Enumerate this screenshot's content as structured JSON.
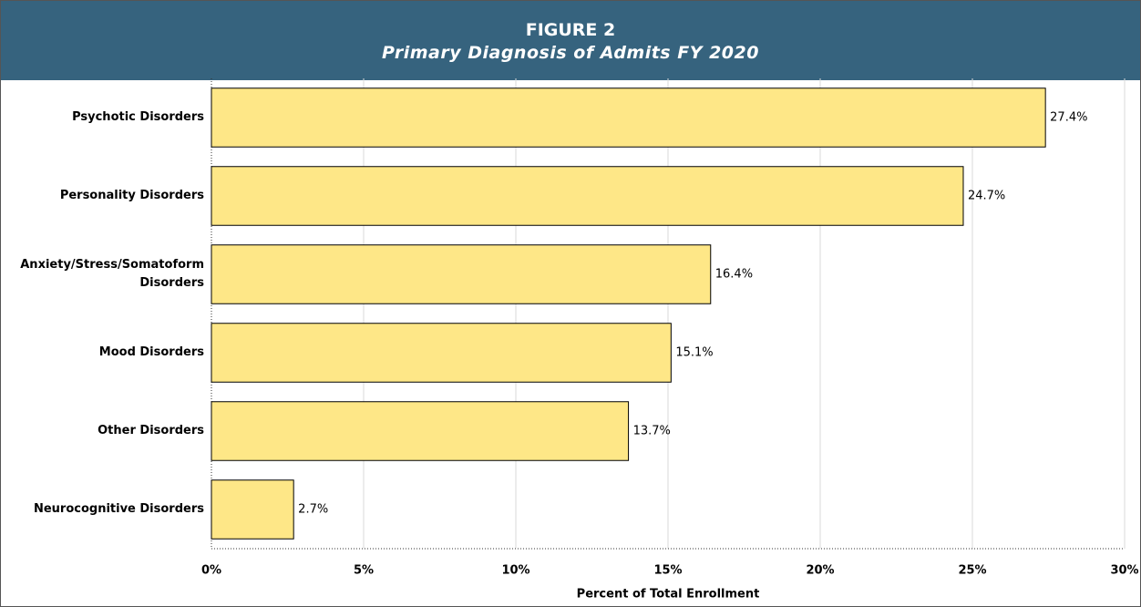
{
  "chart_data": {
    "type": "bar",
    "orientation": "horizontal",
    "title": "FIGURE 2",
    "subtitle": "Primary Diagnosis of Admits FY 2020",
    "x_label": "Percent of Total Enrollment",
    "categories": [
      "Psychotic Disorders",
      "Personality Disorders",
      "Anxiety/Stress/Somatoform Disorders",
      "Mood Disorders",
      "Other Disorders",
      "Neurocognitive Disorders"
    ],
    "values": [
      27.4,
      24.7,
      16.4,
      15.1,
      13.7,
      2.7
    ],
    "value_labels": [
      "27.4%",
      "24.7%",
      "16.4%",
      "15.1%",
      "13.7%",
      "2.7%"
    ],
    "color": "#fee787",
    "xlim": [
      0,
      30
    ],
    "xticks": [
      {
        "value": 0,
        "label": "0%"
      },
      {
        "value": 5,
        "label": "5%"
      },
      {
        "value": 10,
        "label": "10%"
      },
      {
        "value": 15,
        "label": "15%"
      },
      {
        "value": 20,
        "label": "20%"
      },
      {
        "value": 25,
        "label": "25%"
      },
      {
        "value": 30,
        "label": "30%"
      }
    ],
    "grid": true
  }
}
